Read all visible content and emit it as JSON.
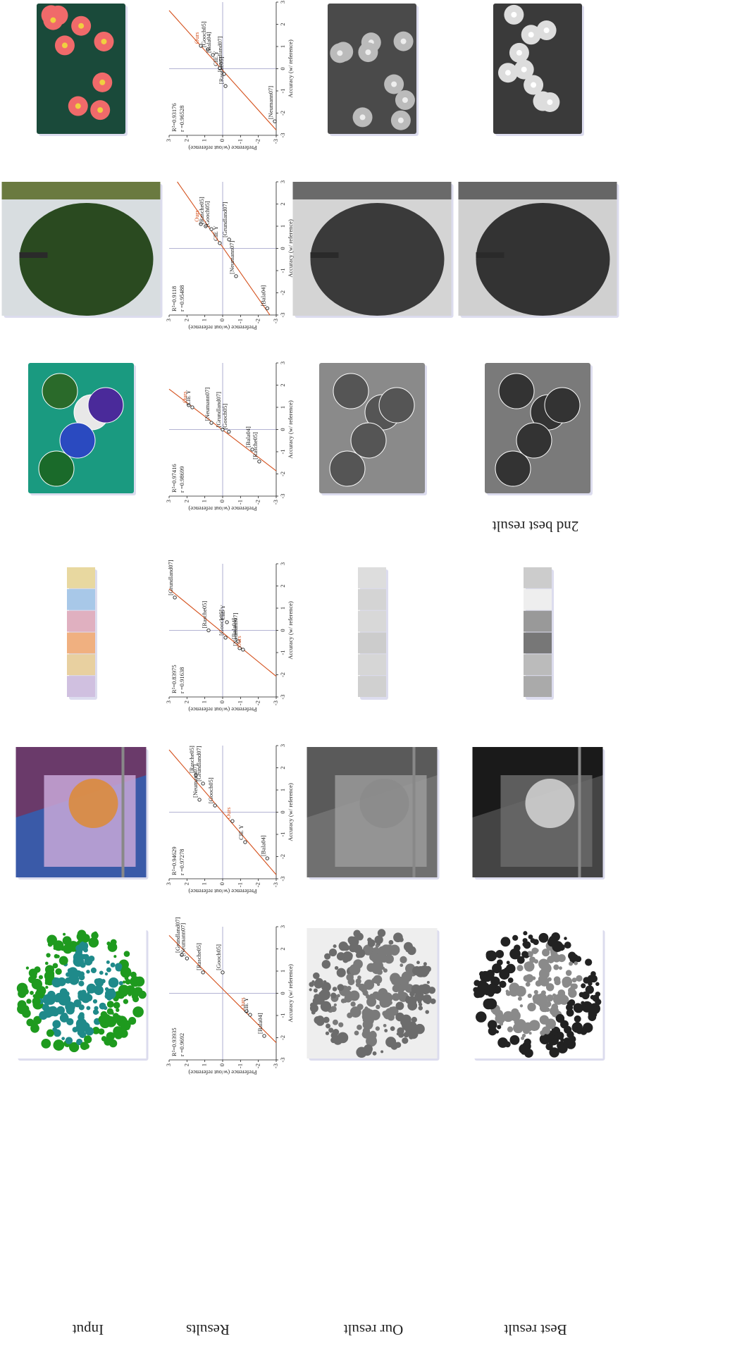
{
  "figure": {
    "row_labels": [
      "Input",
      "Results",
      "Our result",
      "Best result"
    ],
    "second_best_label": "2nd best result",
    "x_label": "Accuracy (w/ reference)",
    "y_label": "Preference (w/out reference)",
    "lim": [
      -3,
      3
    ],
    "ticks": [
      -3,
      -2,
      -1,
      0,
      1,
      2,
      3
    ],
    "fit_color": "#d4501c",
    "zero_line_color": "#9a9ac4",
    "plots": [
      {
        "type": "scatter",
        "stats": [
          "R²=0.93935",
          "r =0.9692"
        ],
        "points": [
          {
            "label": "[Grundland07]",
            "x": 1.73,
            "y": 2.29,
            "color": "#222222"
          },
          {
            "label": "[Neumann07]",
            "x": 1.57,
            "y": 2.0,
            "color": "#222222"
          },
          {
            "label": "[Rasche05]",
            "x": 0.94,
            "y": 1.1,
            "color": "#222222"
          },
          {
            "label": "[Gooch05]",
            "x": 0.94,
            "y": 0.0,
            "color": "#222222"
          },
          {
            "label": "Ours",
            "x": -0.81,
            "y": -1.34,
            "color": "#d4501c"
          },
          {
            "label": "CIE Y",
            "x": -0.97,
            "y": -1.54,
            "color": "#222222"
          },
          {
            "label": "[Bala04]",
            "x": -1.92,
            "y": -2.33,
            "color": "#222222"
          }
        ]
      },
      {
        "type": "scatter",
        "stats": [
          "R²=0.94629",
          "r =0.97278"
        ],
        "points": [
          {
            "label": "[Rasche05]",
            "x": 1.67,
            "y": 1.5,
            "color": "#222222"
          },
          {
            "label": "[Grundland07]",
            "x": 1.29,
            "y": 1.1,
            "color": "#222222"
          },
          {
            "label": "[Neumann07]",
            "x": 0.56,
            "y": 1.3,
            "color": "#222222"
          },
          {
            "label": "[Gooch05]",
            "x": 0.3,
            "y": 0.43,
            "color": "#222222"
          },
          {
            "label": "Ours",
            "x": -0.4,
            "y": -0.55,
            "color": "#d4501c"
          },
          {
            "label": "CIE Y",
            "x": -1.35,
            "y": -1.26,
            "color": "#222222"
          },
          {
            "label": "[Bala04]",
            "x": -2.08,
            "y": -2.5,
            "color": "#222222"
          }
        ]
      },
      {
        "type": "scatter",
        "stats": [
          "R²=0.83975",
          "r =0.91638"
        ],
        "points": [
          {
            "label": "[Grundland07]",
            "x": 1.48,
            "y": 2.68,
            "color": "#222222"
          },
          {
            "label": "[Rasche05]",
            "x": 0.0,
            "y": 0.79,
            "color": "#222222"
          },
          {
            "label": "CIE Y",
            "x": 0.37,
            "y": -0.24,
            "color": "#222222"
          },
          {
            "label": "[Gooch05]",
            "x": -0.33,
            "y": -0.16,
            "color": "#222222"
          },
          {
            "label": "[Bala04]",
            "x": -0.49,
            "y": -0.87,
            "color": "#222222"
          },
          {
            "label": "[Neumann07]",
            "x": -0.8,
            "y": -0.95,
            "color": "#222222"
          },
          {
            "label": "Ours",
            "x": -0.87,
            "y": -1.14,
            "color": "#d4501c"
          }
        ]
      },
      {
        "type": "scatter",
        "stats": [
          "R²=0.97416",
          "r =0.98699"
        ],
        "points": [
          {
            "label": "Ours",
            "x": 1.1,
            "y": 1.9,
            "color": "#d4501c"
          },
          {
            "label": "CIE Y",
            "x": 1.0,
            "y": 1.7,
            "color": "#222222"
          },
          {
            "label": "[Neumann07]",
            "x": 0.3,
            "y": 0.63,
            "color": "#222222"
          },
          {
            "label": "[Grundland07]",
            "x": 0.0,
            "y": 0.0,
            "color": "#222222"
          },
          {
            "label": "[Gooch05]",
            "x": -0.1,
            "y": -0.35,
            "color": "#222222"
          },
          {
            "label": "[Bala04]",
            "x": -0.9,
            "y": -1.66,
            "color": "#222222"
          },
          {
            "label": "[Rasche05]",
            "x": -1.44,
            "y": -2.05,
            "color": "#222222"
          }
        ]
      },
      {
        "type": "scatter",
        "stats": [
          "R²=0.9118",
          "r =0.95488"
        ],
        "points": [
          {
            "label": "Ours",
            "x": 1.1,
            "y": 1.22,
            "color": "#d4501c"
          },
          {
            "label": "[Rasche05]",
            "x": 1.0,
            "y": 0.95,
            "color": "#222222"
          },
          {
            "label": "[Gooch05]",
            "x": 0.87,
            "y": 0.63,
            "color": "#222222"
          },
          {
            "label": "CIE Y",
            "x": 0.24,
            "y": 0.16,
            "color": "#222222"
          },
          {
            "label": "[Grundland07]",
            "x": 0.4,
            "y": -0.36,
            "color": "#222222"
          },
          {
            "label": "[Neumann07]",
            "x": -1.25,
            "y": -0.75,
            "color": "#222222"
          },
          {
            "label": "[Bala04]",
            "x": -2.7,
            "y": -2.5,
            "color": "#222222"
          }
        ]
      },
      {
        "type": "scatter",
        "stats": [
          "R²=0.93176",
          "r =0.96528"
        ],
        "points": [
          {
            "label": "Ours",
            "x": 1.03,
            "y": 1.22,
            "color": "#d4501c"
          },
          {
            "label": "[Gooch05]",
            "x": 0.87,
            "y": 0.83,
            "color": "#222222"
          },
          {
            "label": "[Bala04]",
            "x": 0.62,
            "y": 0.55,
            "color": "#222222"
          },
          {
            "label": "CIE Y",
            "x": 0.02,
            "y": 0.16,
            "color": "#222222"
          },
          {
            "label": "[Grundland07]",
            "x": -0.24,
            "y": -0.08,
            "color": "#222222"
          },
          {
            "label": "[Rasche05]",
            "x": -0.78,
            "y": -0.16,
            "color": "#222222"
          },
          {
            "label": "[Neumann07]",
            "x": -2.37,
            "y": -2.92,
            "color": "#222222"
          }
        ]
      }
    ]
  }
}
